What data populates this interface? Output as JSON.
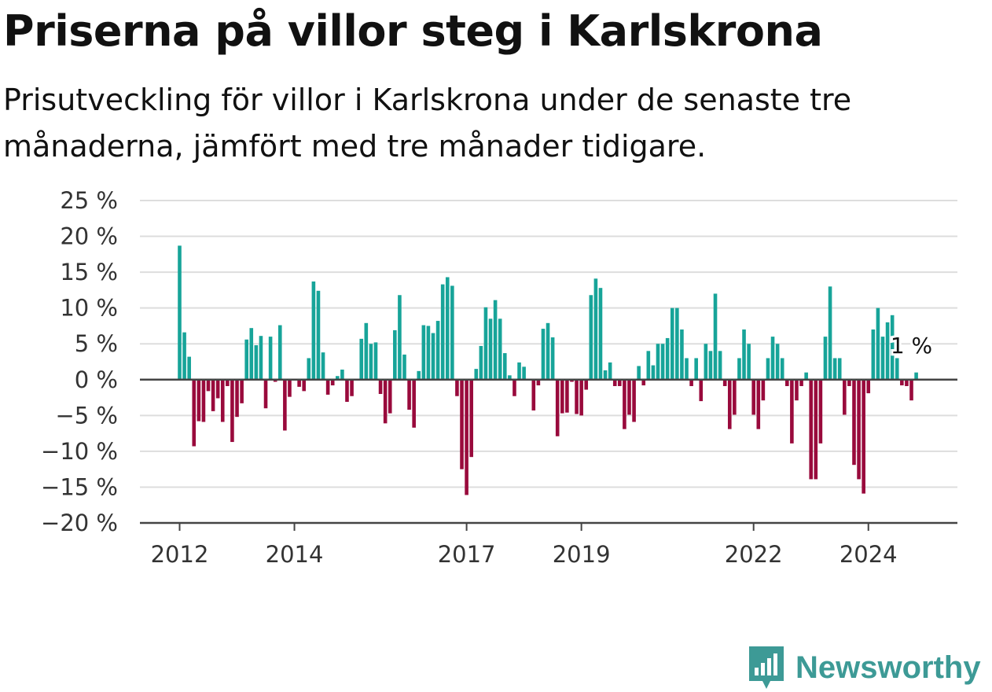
{
  "header": {
    "title": "Priserna på villor steg i Karlskrona",
    "subtitle": "Prisutveckling för villor i Karlskrona under de senaste tre månaderna, jämfört med tre månader tidigare."
  },
  "brand": {
    "name": "Newsworthy",
    "color": "#3d9a96",
    "icon": "newsworthy-logo-icon"
  },
  "colors": {
    "positive": "#17a499",
    "negative": "#990a3c",
    "grid": "#dddddd",
    "axis": "#444444"
  },
  "chart_data": {
    "type": "bar",
    "title": "Priserna på villor steg i Karlskrona",
    "xlabel": "",
    "ylabel": "",
    "ylim": [
      -20,
      25
    ],
    "yticks": [
      25,
      20,
      15,
      10,
      5,
      0,
      -5,
      -10,
      -15,
      -20
    ],
    "ytick_labels": [
      "25 %",
      "20 %",
      "15 %",
      "10 %",
      "5 %",
      "0 %",
      "−5 %",
      "−10 %",
      "−15 %",
      "−20 %"
    ],
    "xticks": [
      {
        "label": "2012",
        "month": 0
      },
      {
        "label": "2014",
        "month": 24
      },
      {
        "label": "2017",
        "month": 60
      },
      {
        "label": "2019",
        "month": 84
      },
      {
        "label": "2022",
        "month": 120
      },
      {
        "label": "2024",
        "month": 144
      }
    ],
    "start": "2012-01",
    "grid": true,
    "annotation": {
      "label": "1 %",
      "month": 153
    },
    "values": [
      18.7,
      6.6,
      3.2,
      -9.3,
      -5.8,
      -5.9,
      -1.6,
      -4.4,
      -2.6,
      -5.9,
      -0.9,
      -8.7,
      -5.2,
      -3.3,
      5.6,
      7.2,
      4.8,
      6.1,
      -4.0,
      6.0,
      -0.3,
      7.6,
      -7.1,
      -2.4,
      0.0,
      -1.0,
      -1.6,
      3.0,
      13.7,
      12.4,
      3.8,
      -2.1,
      -0.8,
      0.5,
      1.4,
      -3.1,
      -2.3,
      0.0,
      5.7,
      7.9,
      5.0,
      5.2,
      -2.0,
      -6.1,
      -4.7,
      6.9,
      11.8,
      3.5,
      -4.2,
      -6.7,
      1.2,
      7.6,
      7.5,
      6.5,
      8.2,
      13.3,
      14.3,
      13.1,
      -2.3,
      -12.5,
      -16.1,
      -10.8,
      1.5,
      4.7,
      10.1,
      8.5,
      11.1,
      8.5,
      3.7,
      0.6,
      -2.3,
      2.4,
      1.8,
      0.0,
      -4.3,
      -0.8,
      7.1,
      7.9,
      5.9,
      -7.9,
      -4.7,
      -4.6,
      -0.3,
      -4.8,
      -5.0,
      -1.4,
      11.8,
      14.1,
      12.8,
      1.3,
      2.4,
      -0.9,
      -0.9,
      -6.9,
      -4.9,
      -5.9,
      1.9,
      -0.8,
      4.0,
      2.0,
      5.0,
      5.0,
      5.8,
      10.0,
      10.0,
      7.0,
      3.0,
      -0.9,
      3.0,
      -3.0,
      5.0,
      4.0,
      12.0,
      4.0,
      -0.9,
      -6.9,
      -4.9,
      3.0,
      7.0,
      5.0,
      -4.9,
      -6.9,
      -2.9,
      3.0,
      6.0,
      5.0,
      3.0,
      -0.9,
      -8.9,
      -2.9,
      -0.9,
      1.0,
      -13.9,
      -13.9,
      -8.9,
      6.0,
      13.0,
      3.0,
      3.0,
      -4.9,
      -0.9,
      -11.9,
      -13.9,
      -15.9,
      -1.9,
      7.0,
      10.0,
      6.0,
      8.0,
      9.0,
      3.0,
      -0.8,
      -0.9,
      -2.9,
      1.0
    ]
  }
}
